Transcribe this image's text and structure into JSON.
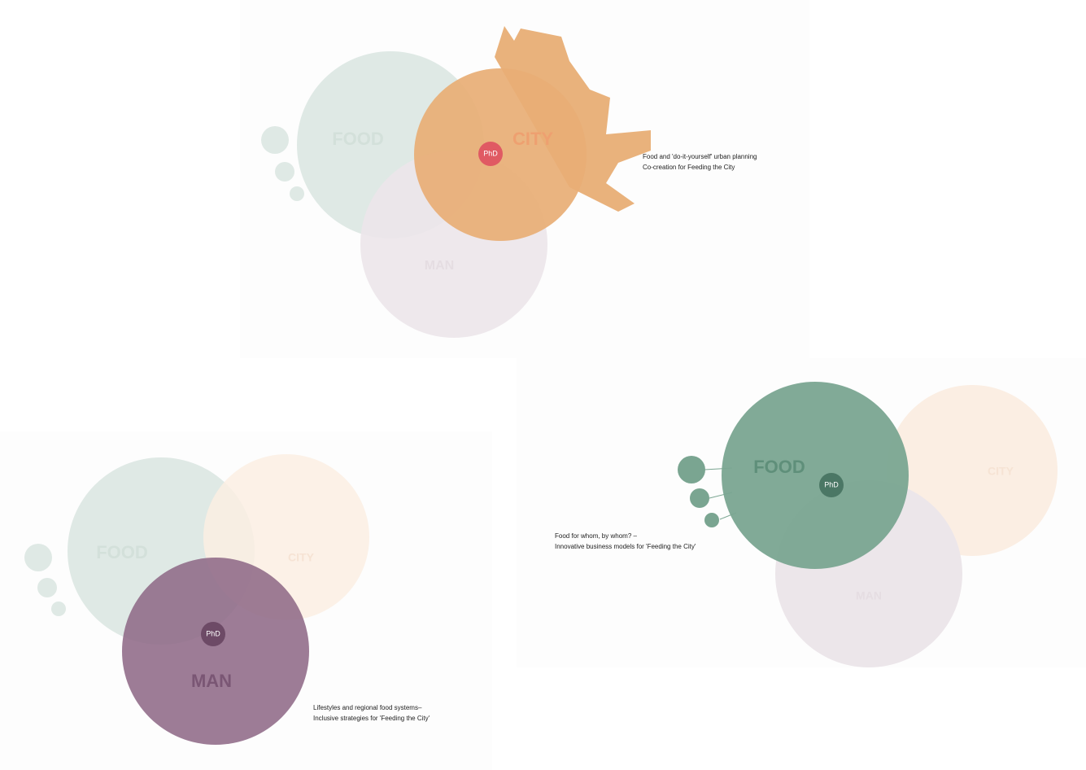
{
  "diagrams": [
    {
      "circles": [
        {
          "label": "FOOD"
        },
        {
          "label": "CITY"
        },
        {
          "label": "MAN"
        }
      ],
      "center": "PhD",
      "caption": [
        "Food and 'do-it-yourself' urban planning",
        "Co-creation for Feeding the City"
      ]
    },
    {
      "circles": [
        {
          "label": "FOOD"
        },
        {
          "label": "CITY"
        },
        {
          "label": "MAN"
        }
      ],
      "center": "PhD",
      "caption": [
        "Lifestyles and regional food systems–",
        "Inclusive strategies for 'Feeding the City'"
      ]
    },
    {
      "circles": [
        {
          "label": "FOOD"
        },
        {
          "label": "CITY"
        },
        {
          "label": "MAN"
        }
      ],
      "center": "PhD",
      "caption": [
        "Food for whom, by whom? –",
        "Innovative business models for 'Feeding the City'"
      ]
    }
  ]
}
